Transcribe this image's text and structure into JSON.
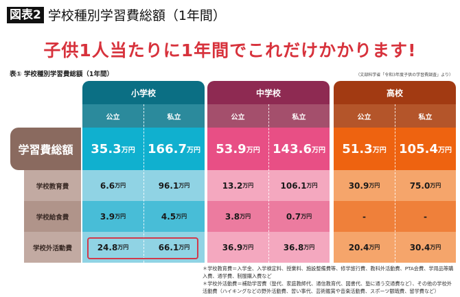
{
  "figure": {
    "badge": "図表2",
    "title": "学校種別学習費総額（1年間）"
  },
  "headline": "子供1人当たりに1年間でこれだけかかります!",
  "table_title": "表① 学校種別学習費総額（1年間）",
  "source": "（文部科学省「令和3年度子供の学習費調査」より）",
  "unit": "万円",
  "groups": [
    {
      "name": "小学校",
      "cols": [
        "公立",
        "私立"
      ],
      "colors": {
        "header": "#0b6f84",
        "sub": "#2b8a9c",
        "total": "#10b0cf",
        "light": "#90d3e4",
        "mid": "#48bdd7"
      }
    },
    {
      "name": "中学校",
      "cols": [
        "公立",
        "私立"
      ],
      "colors": {
        "header": "#8e2a52",
        "sub": "#a44f6c",
        "total": "#e84f85",
        "light": "#f4a8bf",
        "mid": "#ec7b9f"
      }
    },
    {
      "name": "高校",
      "cols": [
        "公立",
        "私立"
      ],
      "colors": {
        "header": "#a23a12",
        "sub": "#b4552a",
        "total": "#ee6310",
        "light": "#f5a56b",
        "mid": "#ef803a"
      }
    }
  ],
  "rows": [
    {
      "label": "学習費総額",
      "values": [
        "35.3",
        "166.7",
        "53.9",
        "143.6",
        "51.3",
        "105.4"
      ]
    },
    {
      "label": "学校教育費",
      "values": [
        "6.6",
        "96.1",
        "13.2",
        "106.1",
        "30.9",
        "75.0"
      ]
    },
    {
      "label": "学校給食費",
      "values": [
        "3.9",
        "4.5",
        "3.8",
        "0.7",
        "-",
        "-"
      ]
    },
    {
      "label": "学校外活動費",
      "values": [
        "24.8",
        "66.1",
        "36.9",
        "36.8",
        "20.4",
        "30.4"
      ]
    }
  ],
  "highlight_color": "#d2384a",
  "notes": [
    "＊学校教育費＝入学金、入学検定料、授業料、施設整備費等、修学旅行費、教科外活動費、PTA会費、学用品等購入費、通学費、制服購入費など",
    "＊学校外活動費＝補助学習費（塾代、家庭教師代、通信教育代、図書代、塾に通う交通費など）、その他の学校外活動費（ハイキングなどの野外活動費、習い事代、芸術鑑賞や音楽活動費、スポーツ観戦費、留学費など）"
  ]
}
